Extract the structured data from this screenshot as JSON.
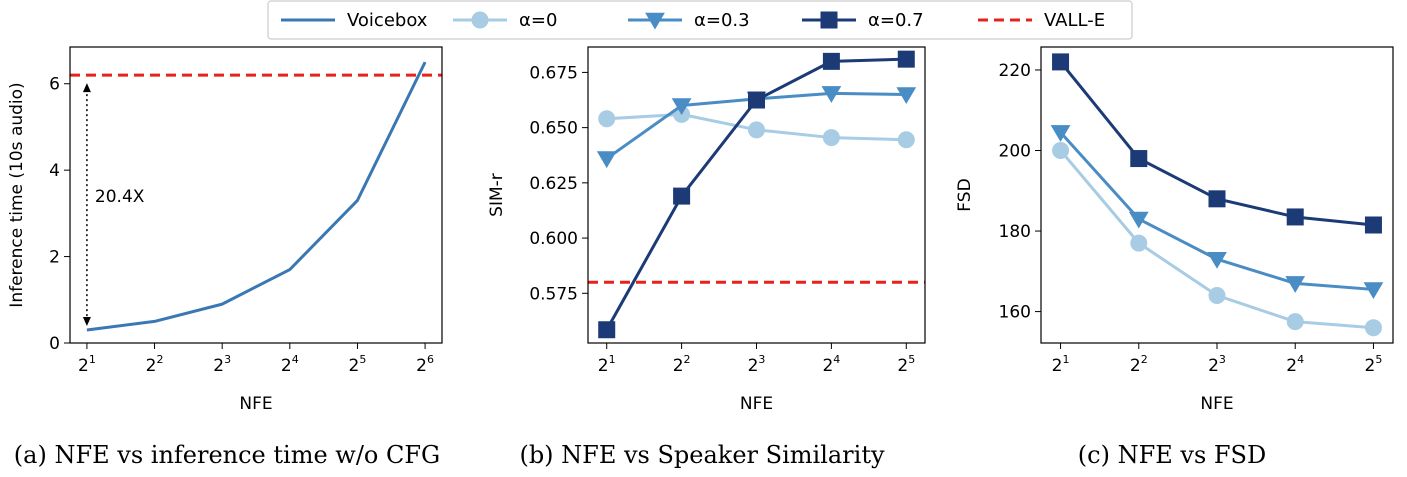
{
  "legend": {
    "entries": [
      {
        "label": "Voicebox",
        "color": "#3a78b4",
        "marker": "none",
        "dash": "solid"
      },
      {
        "label": "α=0",
        "color": "#a8cce4",
        "marker": "circle",
        "dash": "solid"
      },
      {
        "label": "α=0.3",
        "color": "#4a8cc4",
        "marker": "triangle-down",
        "dash": "solid"
      },
      {
        "label": "α=0.7",
        "color": "#1c3a76",
        "marker": "square",
        "dash": "solid"
      },
      {
        "label": "VALL-E",
        "color": "#e8211d",
        "marker": "none",
        "dash": "dashed"
      }
    ]
  },
  "chart_data": [
    {
      "type": "line",
      "caption": "(a) NFE vs inference time w/o CFG",
      "xlabel": "NFE",
      "ylabel": "Inference time (10s audio)",
      "x": [
        1,
        2,
        3,
        4,
        5,
        6
      ],
      "x_tick_labels": [
        {
          "base": "2",
          "exp": "1"
        },
        {
          "base": "2",
          "exp": "2"
        },
        {
          "base": "2",
          "exp": "3"
        },
        {
          "base": "2",
          "exp": "4"
        },
        {
          "base": "2",
          "exp": "5"
        },
        {
          "base": "2",
          "exp": "6"
        }
      ],
      "xlim": [
        0.75,
        6.25
      ],
      "ylim": [
        0,
        6.85
      ],
      "yticks": [
        0,
        2,
        4,
        6
      ],
      "ytick_labels": [
        "0",
        "2",
        "4",
        "6"
      ],
      "series": [
        {
          "name": "Voicebox",
          "values": [
            0.3,
            0.5,
            0.9,
            1.7,
            3.3,
            6.5
          ]
        }
      ],
      "hlines": [
        {
          "name": "VALL-E",
          "value": 6.2
        }
      ],
      "annotation": {
        "text": "20.4X",
        "x": 1,
        "y_from": 0.3,
        "y_to": 6.2,
        "text_y": 3.4
      }
    },
    {
      "type": "line",
      "caption": "(b) NFE vs Speaker Similarity",
      "xlabel": "NFE",
      "ylabel": "SIM-r",
      "x": [
        1,
        2,
        3,
        4,
        5
      ],
      "x_tick_labels": [
        {
          "base": "2",
          "exp": "1"
        },
        {
          "base": "2",
          "exp": "2"
        },
        {
          "base": "2",
          "exp": "3"
        },
        {
          "base": "2",
          "exp": "4"
        },
        {
          "base": "2",
          "exp": "5"
        }
      ],
      "xlim": [
        0.75,
        5.25
      ],
      "ylim": [
        0.5525,
        0.6865
      ],
      "yticks": [
        0.575,
        0.6,
        0.625,
        0.65,
        0.675
      ],
      "ytick_labels": [
        "0.575",
        "0.600",
        "0.625",
        "0.650",
        "0.675"
      ],
      "series": [
        {
          "name": "α=0",
          "values": [
            0.654,
            0.656,
            0.649,
            0.6455,
            0.6445
          ]
        },
        {
          "name": "α=0.3",
          "values": [
            0.636,
            0.66,
            0.663,
            0.6655,
            0.665
          ]
        },
        {
          "name": "α=0.7",
          "values": [
            0.5585,
            0.619,
            0.6625,
            0.68,
            0.681
          ]
        }
      ],
      "hlines": [
        {
          "name": "VALL-E",
          "value": 0.58
        }
      ]
    },
    {
      "type": "line",
      "caption": "(c) NFE vs FSD",
      "xlabel": "NFE",
      "ylabel": "FSD",
      "x": [
        1,
        2,
        3,
        4,
        5
      ],
      "x_tick_labels": [
        {
          "base": "2",
          "exp": "1"
        },
        {
          "base": "2",
          "exp": "2"
        },
        {
          "base": "2",
          "exp": "3"
        },
        {
          "base": "2",
          "exp": "4"
        },
        {
          "base": "2",
          "exp": "5"
        }
      ],
      "xlim": [
        0.75,
        5.25
      ],
      "ylim": [
        152.2,
        225.7
      ],
      "yticks": [
        160,
        180,
        200,
        220
      ],
      "ytick_labels": [
        "160",
        "180",
        "200",
        "220"
      ],
      "series": [
        {
          "name": "α=0",
          "values": [
            200,
            177,
            164,
            157.5,
            156
          ]
        },
        {
          "name": "α=0.3",
          "values": [
            204.5,
            183,
            173,
            167,
            165.5
          ]
        },
        {
          "name": "α=0.7",
          "values": [
            222,
            198,
            188,
            183.5,
            181.5
          ]
        }
      ],
      "hlines": []
    }
  ]
}
